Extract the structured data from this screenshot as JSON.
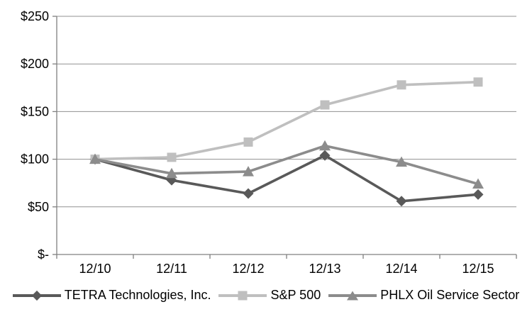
{
  "chart_data": {
    "type": "line",
    "title": "",
    "xlabel": "",
    "ylabel": "",
    "categories": [
      "12/10",
      "12/11",
      "12/12",
      "12/13",
      "12/14",
      "12/15"
    ],
    "series": [
      {
        "name": "TETRA Technologies, Inc.",
        "marker": "diamond",
        "color": "#595959",
        "values": [
          100,
          78,
          64,
          104,
          56,
          63
        ]
      },
      {
        "name": "S&P 500",
        "marker": "square",
        "color": "#bfbfbf",
        "values": [
          100,
          102,
          118,
          157,
          178,
          181
        ]
      },
      {
        "name": "PHLX Oil Service Sector",
        "marker": "triangle",
        "color": "#8c8c8c",
        "values": [
          100,
          85,
          87,
          114,
          97,
          74
        ]
      }
    ],
    "y_ticks": [
      {
        "value": 0,
        "label": "$-"
      },
      {
        "value": 50,
        "label": "$50"
      },
      {
        "value": 100,
        "label": "$100"
      },
      {
        "value": 150,
        "label": "$150"
      },
      {
        "value": 200,
        "label": "$200"
      },
      {
        "value": 250,
        "label": "$250"
      }
    ],
    "ylim": [
      0,
      250
    ],
    "grid": "horizontal",
    "legend_position": "bottom",
    "axis_color": "#808080",
    "gridline_color": "#909090",
    "text_color": "#000000",
    "background": "#ffffff"
  }
}
